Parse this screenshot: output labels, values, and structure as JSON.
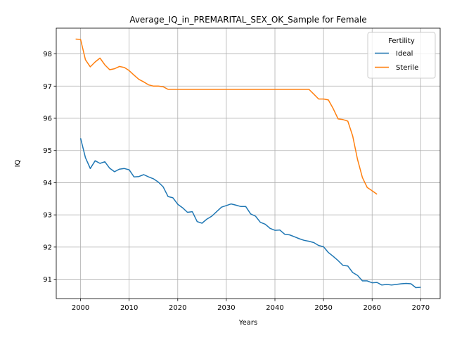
{
  "chart_data": {
    "type": "line",
    "title": "Average_IQ_in_PREMARITAL_SEX_OK_Sample for Female",
    "xlabel": "Years",
    "ylabel": "IQ",
    "xlim": [
      1995,
      2074
    ],
    "ylim": [
      90.4,
      98.8
    ],
    "x_ticks": [
      2000,
      2010,
      2020,
      2030,
      2040,
      2050,
      2060,
      2070
    ],
    "y_ticks": [
      91,
      92,
      93,
      94,
      95,
      96,
      97,
      98
    ],
    "grid": true,
    "legend": {
      "title": "Fertility",
      "placement": "top-right"
    },
    "series": [
      {
        "name": "Ideal",
        "color": "#1f77b4",
        "x": [
          2000,
          2001,
          2002,
          2003,
          2004,
          2005,
          2006,
          2007,
          2008,
          2009,
          2010,
          2011,
          2012,
          2013,
          2014,
          2015,
          2016,
          2017,
          2018,
          2019,
          2020,
          2021,
          2022,
          2023,
          2024,
          2025,
          2026,
          2027,
          2028,
          2029,
          2030,
          2031,
          2032,
          2033,
          2034,
          2035,
          2036,
          2037,
          2038,
          2039,
          2040,
          2041,
          2042,
          2043,
          2044,
          2045,
          2046,
          2047,
          2048,
          2049,
          2050,
          2051,
          2052,
          2053,
          2054,
          2055,
          2056,
          2057,
          2058,
          2059,
          2060,
          2061,
          2062,
          2063,
          2064,
          2065,
          2066,
          2067,
          2068,
          2069,
          2070
        ],
        "y": [
          95.38,
          94.78,
          94.44,
          94.68,
          94.6,
          94.65,
          94.45,
          94.34,
          94.42,
          94.44,
          94.4,
          94.18,
          94.19,
          94.25,
          94.18,
          94.12,
          94.02,
          93.87,
          93.57,
          93.53,
          93.33,
          93.22,
          93.08,
          93.1,
          92.79,
          92.74,
          92.87,
          92.96,
          93.1,
          93.24,
          93.29,
          93.34,
          93.3,
          93.26,
          93.26,
          93.03,
          92.96,
          92.77,
          92.71,
          92.58,
          92.52,
          92.53,
          92.4,
          92.38,
          92.32,
          92.26,
          92.21,
          92.18,
          92.14,
          92.05,
          92.01,
          91.83,
          91.71,
          91.58,
          91.43,
          91.41,
          91.21,
          91.12,
          90.95,
          90.95,
          90.89,
          90.9,
          90.82,
          90.84,
          90.82,
          90.84,
          90.86,
          90.87,
          90.86,
          90.74,
          90.75
        ]
      },
      {
        "name": "Sterile",
        "color": "#ff7f0e",
        "x": [
          1999,
          2000,
          2001,
          2002,
          2003,
          2004,
          2005,
          2006,
          2007,
          2008,
          2009,
          2010,
          2011,
          2012,
          2013,
          2014,
          2015,
          2016,
          2017,
          2018,
          2019,
          2020,
          2021,
          2022,
          2023,
          2024,
          2025,
          2026,
          2027,
          2028,
          2029,
          2030,
          2031,
          2032,
          2033,
          2034,
          2035,
          2036,
          2037,
          2038,
          2039,
          2040,
          2041,
          2042,
          2043,
          2044,
          2045,
          2046,
          2047,
          2048,
          2049,
          2050,
          2051,
          2052,
          2053,
          2054,
          2055,
          2056,
          2057,
          2058,
          2059,
          2060,
          2061
        ],
        "y": [
          98.46,
          98.45,
          97.82,
          97.6,
          97.75,
          97.87,
          97.66,
          97.51,
          97.54,
          97.61,
          97.58,
          97.48,
          97.34,
          97.21,
          97.13,
          97.04,
          97.0,
          97.0,
          96.98,
          96.9,
          96.9,
          96.9,
          96.9,
          96.9,
          96.9,
          96.9,
          96.9,
          96.9,
          96.9,
          96.9,
          96.9,
          96.9,
          96.9,
          96.9,
          96.9,
          96.9,
          96.9,
          96.9,
          96.9,
          96.9,
          96.9,
          96.9,
          96.9,
          96.9,
          96.9,
          96.9,
          96.9,
          96.9,
          96.9,
          96.75,
          96.6,
          96.6,
          96.57,
          96.3,
          95.98,
          95.96,
          95.91,
          95.45,
          94.72,
          94.16,
          93.85,
          93.75,
          93.64
        ]
      }
    ]
  }
}
